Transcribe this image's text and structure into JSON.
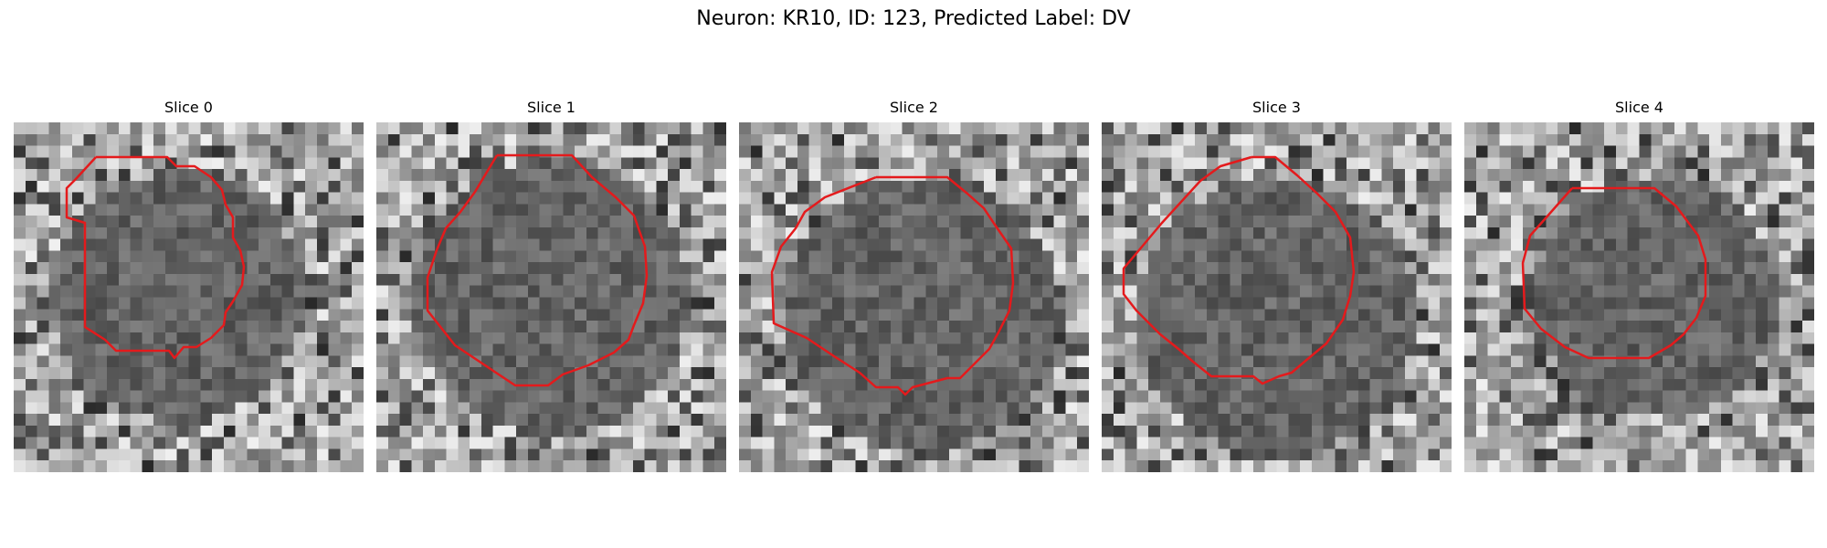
{
  "figure": {
    "title": "Neuron: KR10, ID: 123, Predicted Label: DV"
  },
  "colors": {
    "contour": "#e41a1c",
    "background": "#ffffff"
  },
  "panels": [
    {
      "title": "Slice 0"
    },
    {
      "title": "Slice 1"
    },
    {
      "title": "Slice 2"
    },
    {
      "title": "Slice 3"
    },
    {
      "title": "Slice 4"
    }
  ]
}
